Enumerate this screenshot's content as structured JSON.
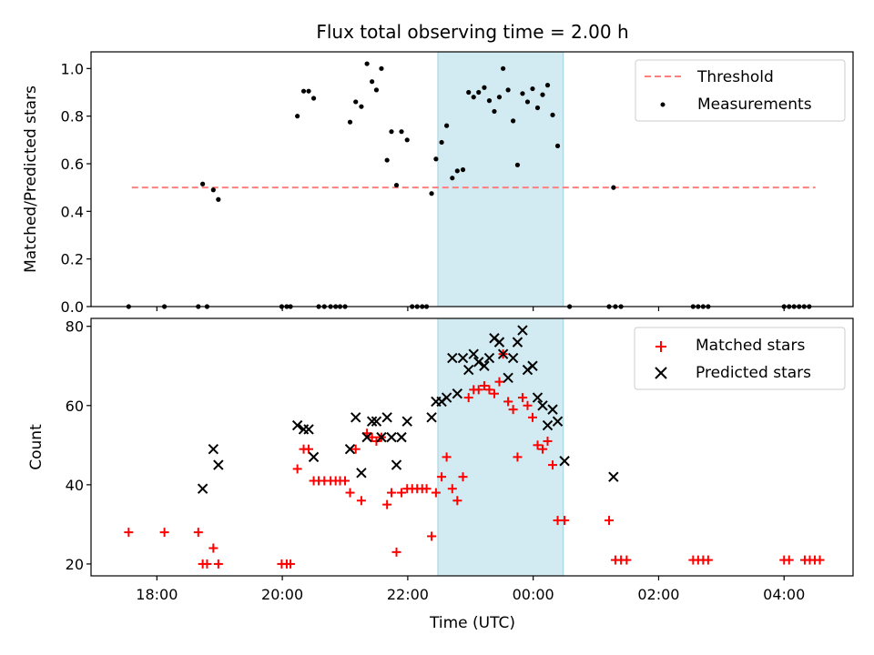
{
  "chart_data": {
    "title": "Flux total observing time = 2.00 h",
    "xlabel": "Time (UTC)",
    "x_units": "hours since 00:00 UTC of the observing night's first day",
    "x_ticks": [
      {
        "value": 18,
        "label": "18:00"
      },
      {
        "value": 20,
        "label": "20:00"
      },
      {
        "value": 22,
        "label": "22:00"
      },
      {
        "value": 24,
        "label": "00:00"
      },
      {
        "value": 26,
        "label": "02:00"
      },
      {
        "value": 28,
        "label": "04:00"
      }
    ],
    "xlim": [
      16.95,
      29.1
    ],
    "shaded_interval": {
      "start": 22.48,
      "end": 24.48,
      "color": "#add8e6"
    },
    "panels": [
      {
        "type": "scatter",
        "ylabel": "Matched/Predicted stars",
        "ylim": [
          0,
          1.07
        ],
        "y_ticks": [
          "0.0",
          "0.2",
          "0.4",
          "0.6",
          "0.8",
          "1.0"
        ],
        "y_tick_values": [
          0,
          0.2,
          0.4,
          0.6,
          0.8,
          1.0
        ],
        "legend_position": "top-right",
        "threshold": {
          "name": "Threshold",
          "value": 0.5,
          "x_start": 17.6,
          "x_end": 28.5,
          "color": "#ff7f7f"
        },
        "series": [
          {
            "name": "Measurements",
            "color": "#000000",
            "marker": "dot",
            "points": [
              [
                17.55,
                0
              ],
              [
                18.12,
                0
              ],
              [
                18.66,
                0
              ],
              [
                18.8,
                0
              ],
              [
                18.73,
                0.515
              ],
              [
                18.9,
                0.49
              ],
              [
                18.98,
                0.45
              ],
              [
                19.99,
                0
              ],
              [
                20.07,
                0
              ],
              [
                20.13,
                0
              ],
              [
                20.24,
                0.8
              ],
              [
                20.34,
                0.905
              ],
              [
                20.42,
                0.905
              ],
              [
                20.5,
                0.875
              ],
              [
                20.58,
                0
              ],
              [
                20.67,
                0
              ],
              [
                20.77,
                0
              ],
              [
                20.85,
                0
              ],
              [
                20.92,
                0
              ],
              [
                21.0,
                0
              ],
              [
                21.08,
                0.775
              ],
              [
                21.17,
                0.86
              ],
              [
                21.26,
                0.84
              ],
              [
                21.35,
                1.02
              ],
              [
                21.43,
                0.945
              ],
              [
                21.5,
                0.91
              ],
              [
                21.58,
                1.0
              ],
              [
                21.67,
                0.615
              ],
              [
                21.74,
                0.735
              ],
              [
                21.82,
                0.51
              ],
              [
                21.9,
                0.735
              ],
              [
                21.99,
                0.7
              ],
              [
                22.07,
                0
              ],
              [
                22.15,
                0
              ],
              [
                22.23,
                0
              ],
              [
                22.3,
                0
              ],
              [
                22.38,
                0.475
              ],
              [
                22.45,
                0.62
              ],
              [
                22.54,
                0.69
              ],
              [
                22.62,
                0.76
              ],
              [
                22.71,
                0.54
              ],
              [
                22.79,
                0.57
              ],
              [
                22.88,
                0.575
              ],
              [
                22.97,
                0.9
              ],
              [
                23.05,
                0.88
              ],
              [
                23.13,
                0.9
              ],
              [
                23.22,
                0.92
              ],
              [
                23.3,
                0.865
              ],
              [
                23.38,
                0.82
              ],
              [
                23.46,
                0.88
              ],
              [
                23.52,
                1.0
              ],
              [
                23.6,
                0.91
              ],
              [
                23.68,
                0.78
              ],
              [
                23.75,
                0.595
              ],
              [
                23.83,
                0.895
              ],
              [
                23.91,
                0.86
              ],
              [
                23.99,
                0.915
              ],
              [
                24.07,
                0.835
              ],
              [
                24.15,
                0.89
              ],
              [
                24.23,
                0.93
              ],
              [
                24.31,
                0.805
              ],
              [
                24.39,
                0.675
              ],
              [
                24.58,
                0
              ],
              [
                25.21,
                0
              ],
              [
                25.31,
                0
              ],
              [
                25.4,
                0
              ],
              [
                25.28,
                0.5
              ],
              [
                26.55,
                0
              ],
              [
                26.63,
                0
              ],
              [
                26.71,
                0
              ],
              [
                26.79,
                0
              ],
              [
                28.0,
                0
              ],
              [
                28.08,
                0
              ],
              [
                28.16,
                0
              ],
              [
                28.24,
                0
              ],
              [
                28.32,
                0
              ],
              [
                28.4,
                0
              ]
            ]
          }
        ]
      },
      {
        "type": "scatter",
        "ylabel": "Count",
        "ylim": [
          17,
          82
        ],
        "y_ticks": [
          "20",
          "40",
          "60",
          "80"
        ],
        "y_tick_values": [
          20,
          40,
          60,
          80
        ],
        "legend_position": "top-right",
        "series": [
          {
            "name": "Matched stars",
            "color": "#ff0000",
            "marker": "plus",
            "points": [
              [
                17.55,
                28
              ],
              [
                18.12,
                28
              ],
              [
                18.66,
                28
              ],
              [
                18.73,
                20
              ],
              [
                18.8,
                20
              ],
              [
                18.9,
                24
              ],
              [
                18.98,
                20
              ],
              [
                19.99,
                20
              ],
              [
                20.07,
                20
              ],
              [
                20.13,
                20
              ],
              [
                20.24,
                44
              ],
              [
                20.34,
                49
              ],
              [
                20.42,
                49
              ],
              [
                20.5,
                41
              ],
              [
                20.58,
                41
              ],
              [
                20.67,
                41
              ],
              [
                20.77,
                41
              ],
              [
                20.85,
                41
              ],
              [
                20.92,
                41
              ],
              [
                21.0,
                41
              ],
              [
                21.08,
                38
              ],
              [
                21.17,
                49
              ],
              [
                21.26,
                36
              ],
              [
                21.35,
                53
              ],
              [
                21.43,
                52
              ],
              [
                21.5,
                51
              ],
              [
                21.58,
                52
              ],
              [
                21.67,
                35
              ],
              [
                21.74,
                38
              ],
              [
                21.82,
                23
              ],
              [
                21.9,
                38
              ],
              [
                21.99,
                39
              ],
              [
                22.07,
                39
              ],
              [
                22.15,
                39
              ],
              [
                22.23,
                39
              ],
              [
                22.3,
                39
              ],
              [
                22.38,
                27
              ],
              [
                22.45,
                38
              ],
              [
                22.54,
                42
              ],
              [
                22.62,
                47
              ],
              [
                22.71,
                39
              ],
              [
                22.79,
                36
              ],
              [
                22.88,
                42
              ],
              [
                22.97,
                62
              ],
              [
                23.05,
                64
              ],
              [
                23.13,
                64
              ],
              [
                23.22,
                65
              ],
              [
                23.3,
                64
              ],
              [
                23.38,
                63
              ],
              [
                23.46,
                66
              ],
              [
                23.52,
                73
              ],
              [
                23.6,
                61
              ],
              [
                23.68,
                59
              ],
              [
                23.75,
                47
              ],
              [
                23.83,
                62
              ],
              [
                23.91,
                60
              ],
              [
                23.99,
                57
              ],
              [
                24.07,
                50
              ],
              [
                24.15,
                49
              ],
              [
                24.23,
                51
              ],
              [
                24.31,
                45
              ],
              [
                24.39,
                31
              ],
              [
                24.5,
                31
              ],
              [
                25.21,
                31
              ],
              [
                25.31,
                21
              ],
              [
                25.4,
                21
              ],
              [
                25.49,
                21
              ],
              [
                26.55,
                21
              ],
              [
                26.63,
                21
              ],
              [
                26.71,
                21
              ],
              [
                26.79,
                21
              ],
              [
                28.0,
                21
              ],
              [
                28.08,
                21
              ],
              [
                28.33,
                21
              ],
              [
                28.41,
                21
              ],
              [
                28.49,
                21
              ],
              [
                28.57,
                21
              ]
            ]
          },
          {
            "name": "Predicted stars",
            "color": "#000000",
            "marker": "x",
            "points": [
              [
                18.73,
                39
              ],
              [
                18.9,
                49
              ],
              [
                18.98,
                45
              ],
              [
                20.24,
                55
              ],
              [
                20.34,
                54
              ],
              [
                20.42,
                54
              ],
              [
                20.5,
                47
              ],
              [
                21.08,
                49
              ],
              [
                21.17,
                57
              ],
              [
                21.26,
                43
              ],
              [
                21.35,
                52
              ],
              [
                21.43,
                56
              ],
              [
                21.5,
                56
              ],
              [
                21.58,
                52
              ],
              [
                21.67,
                57
              ],
              [
                21.74,
                52
              ],
              [
                21.82,
                45
              ],
              [
                21.9,
                52
              ],
              [
                21.99,
                56
              ],
              [
                22.38,
                57
              ],
              [
                22.45,
                61
              ],
              [
                22.54,
                61
              ],
              [
                22.62,
                62
              ],
              [
                22.71,
                72
              ],
              [
                22.79,
                63
              ],
              [
                22.88,
                72
              ],
              [
                22.97,
                69
              ],
              [
                23.05,
                73
              ],
              [
                23.13,
                71
              ],
              [
                23.22,
                70
              ],
              [
                23.3,
                72
              ],
              [
                23.38,
                77
              ],
              [
                23.46,
                76
              ],
              [
                23.52,
                73
              ],
              [
                23.6,
                67
              ],
              [
                23.68,
                72
              ],
              [
                23.75,
                76
              ],
              [
                23.83,
                79
              ],
              [
                23.91,
                69
              ],
              [
                23.99,
                70
              ],
              [
                24.07,
                62
              ],
              [
                24.15,
                60
              ],
              [
                24.23,
                55
              ],
              [
                24.31,
                59
              ],
              [
                24.39,
                56
              ],
              [
                24.5,
                46
              ],
              [
                25.28,
                42
              ]
            ]
          }
        ]
      }
    ]
  }
}
